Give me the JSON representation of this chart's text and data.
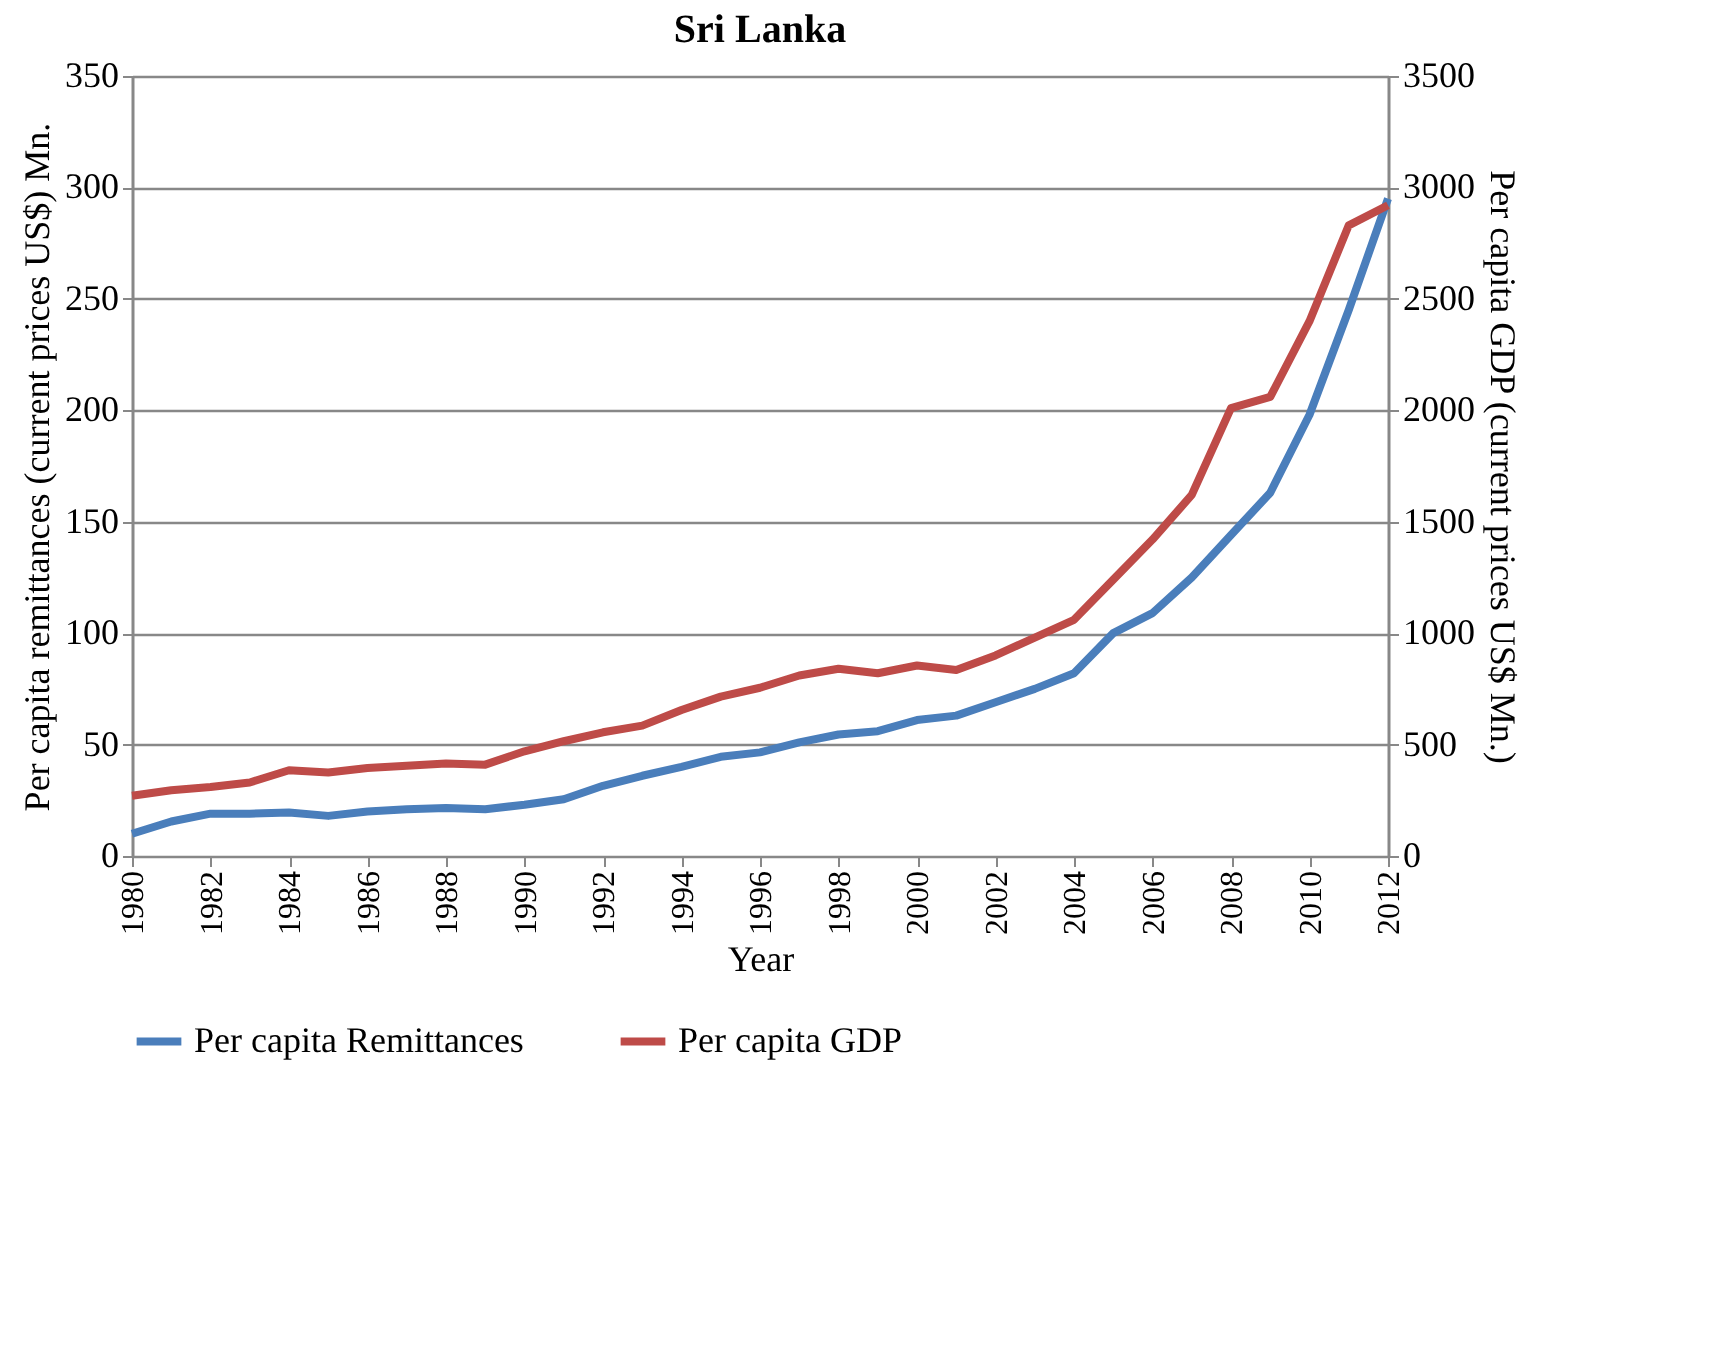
{
  "chart_data": {
    "type": "line",
    "title": "Sri Lanka",
    "xlabel": "Year",
    "ylabel": "Per capita remittances (current prices US$) Mn.",
    "y2label": "Per capita GDP (current prices US$ Mn.)",
    "x": [
      1980,
      1981,
      1982,
      1983,
      1984,
      1985,
      1986,
      1987,
      1988,
      1989,
      1990,
      1991,
      1992,
      1993,
      1994,
      1995,
      1996,
      1997,
      1998,
      1999,
      2000,
      2001,
      2002,
      2003,
      2004,
      2005,
      2006,
      2007,
      2008,
      2009,
      2010,
      2011,
      2012
    ],
    "series": [
      {
        "name": "Per capita Remittances",
        "color": "#4a7ebb",
        "values": [
          10,
          15.5,
          19,
          19,
          19.5,
          18,
          20,
          21,
          21.5,
          21,
          23,
          25.5,
          31.5,
          36,
          40,
          44.5,
          46.5,
          51,
          54.5,
          56,
          61,
          63,
          69,
          75,
          82,
          100,
          109,
          125,
          144,
          163,
          198,
          245,
          295
        ]
      },
      {
        "name": "Per capita GDP",
        "color": "#be4b48",
        "axis": "y2",
        "values": [
          270,
          295,
          310,
          330,
          385,
          375,
          395,
          405,
          415,
          410,
          470,
          515,
          555,
          585,
          655,
          715,
          755,
          810,
          840,
          820,
          855,
          835,
          900,
          980,
          1060,
          1240,
          1420,
          1620,
          2010,
          2060,
          2400,
          2830,
          2920
        ]
      }
    ],
    "xlim": [
      1980,
      2012
    ],
    "xticks": [
      1980,
      1982,
      1984,
      1986,
      1988,
      1990,
      1992,
      1994,
      1996,
      1998,
      2000,
      2002,
      2004,
      2006,
      2008,
      2010,
      2012
    ],
    "ylim": [
      0,
      350
    ],
    "yticks": [
      0,
      50,
      100,
      150,
      200,
      250,
      300,
      350
    ],
    "y2lim": [
      0,
      3500
    ],
    "y2ticks": [
      0,
      500,
      1000,
      1500,
      2000,
      2500,
      3000,
      3500
    ],
    "grid": "y",
    "legend": "bottom",
    "marker": "none",
    "line_style": "solid"
  }
}
